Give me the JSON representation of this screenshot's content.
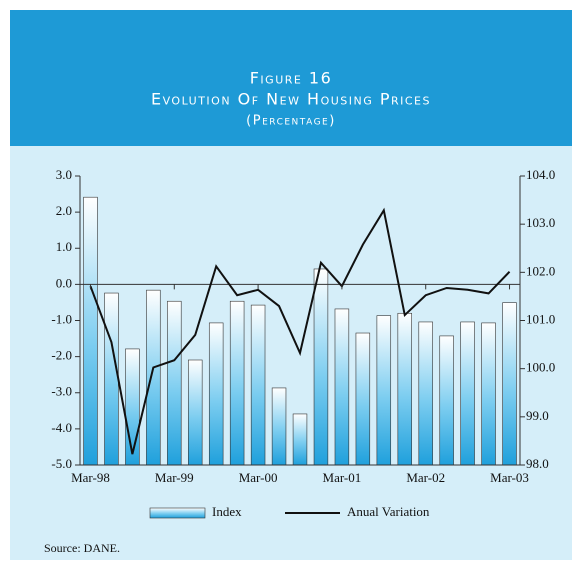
{
  "chart_data": {
    "type": "bar_line",
    "title": "Figure 16",
    "subtitle": "Evolution Of New Housing Prices",
    "unit": "(Percentage)",
    "categories": [
      "Mar-98",
      null,
      null,
      null,
      "Mar-99",
      null,
      null,
      null,
      "Mar-00",
      null,
      null,
      null,
      "Mar-01",
      null,
      null,
      null,
      "Mar-02",
      null,
      null,
      null,
      "Mar-03"
    ],
    "series": [
      {
        "name": "Index",
        "type": "bar",
        "axis": "y2",
        "color": "#2aa8e0",
        "values": [
          103.56,
          101.57,
          100.41,
          101.63,
          101.4,
          100.18,
          100.95,
          101.4,
          101.32,
          99.6,
          99.06,
          102.07,
          101.24,
          100.74,
          101.1,
          101.15,
          100.97,
          100.68,
          100.97,
          100.95,
          101.37
        ]
      },
      {
        "name": "Anual Variation",
        "type": "line",
        "axis": "y",
        "color": "#111111",
        "values": [
          -0.05,
          -1.6,
          -4.7,
          -2.3,
          -2.1,
          -1.4,
          0.5,
          -0.3,
          -0.15,
          -0.6,
          -1.9,
          0.6,
          -0.05,
          1.1,
          2.05,
          -0.85,
          -0.3,
          -0.1,
          -0.15,
          -0.25,
          0.35
        ]
      }
    ],
    "ylim": [
      -5,
      3
    ],
    "yticks": [
      {
        "value": -5,
        "label": "-5.0"
      },
      {
        "value": -4,
        "label": "-4.0"
      },
      {
        "value": -3,
        "label": "-3.0"
      },
      {
        "value": -2,
        "label": "-2.0"
      },
      {
        "value": -1,
        "label": "-1.0"
      },
      {
        "value": 0,
        "label": "0.0"
      },
      {
        "value": 1,
        "label": "1.0"
      },
      {
        "value": 2,
        "label": "2.0"
      },
      {
        "value": 3,
        "label": "3.0"
      }
    ],
    "y2lim": [
      98,
      104
    ],
    "y2ticks": [
      {
        "value": 98,
        "label": "98.0"
      },
      {
        "value": 99,
        "label": "99.0"
      },
      {
        "value": 100,
        "label": "100.0"
      },
      {
        "value": 101,
        "label": "101.0"
      },
      {
        "value": 102,
        "label": "102.0"
      },
      {
        "value": 103,
        "label": "103.0"
      },
      {
        "value": 104,
        "label": "104.0"
      }
    ],
    "source": "Source: DANE."
  }
}
